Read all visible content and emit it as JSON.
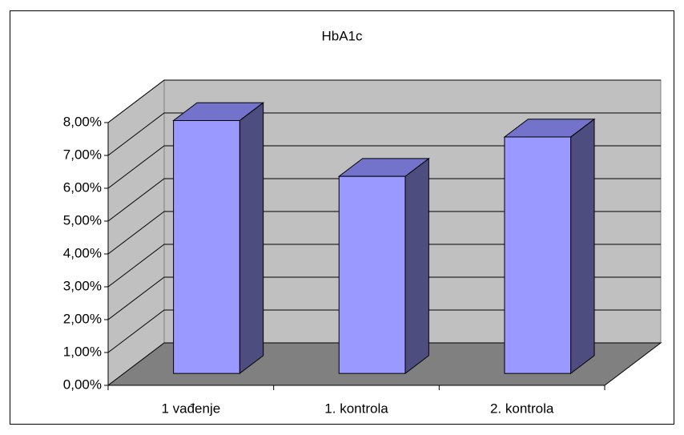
{
  "chart_data": {
    "type": "bar3d",
    "title": "HbA1c",
    "categories": [
      "1 vađenje",
      "1. kontrola",
      "2. kontrola"
    ],
    "values": [
      7.7,
      6.0,
      7.2
    ],
    "color": "#9999ff",
    "ylim": [
      0,
      8
    ],
    "yticks": [
      {
        "value": 0,
        "label": "0,00%"
      },
      {
        "value": 1,
        "label": "1,00%"
      },
      {
        "value": 2,
        "label": "2,00%"
      },
      {
        "value": 3,
        "label": "3,00%"
      },
      {
        "value": 4,
        "label": "4,00%"
      },
      {
        "value": 5,
        "label": "5,00%"
      },
      {
        "value": 6,
        "label": "6,00%"
      },
      {
        "value": 7,
        "label": "7,00%"
      },
      {
        "value": 8,
        "label": "8,00%"
      }
    ],
    "grid": true
  }
}
